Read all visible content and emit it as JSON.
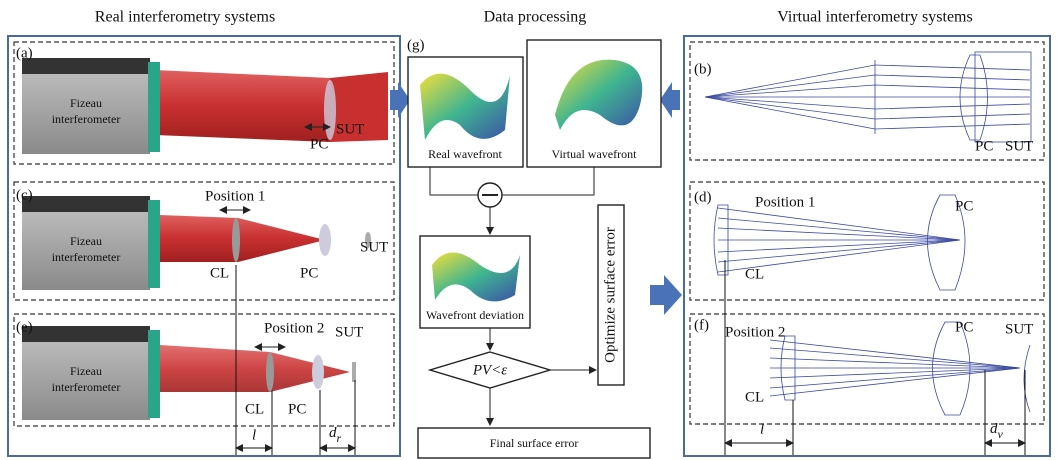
{
  "headers": {
    "real": "Real interferometry systems",
    "processing": "Data processing",
    "virtual": "Virtual interferometry systems"
  },
  "panels": {
    "a": {
      "label": "(a)",
      "device": [
        "Fizeau",
        "interferometer"
      ],
      "pc": "PC",
      "sut": "SUT"
    },
    "c": {
      "label": "(c)",
      "device": [
        "Fizeau",
        "interferometer"
      ],
      "position": "Position 1",
      "cl": "CL",
      "pc": "PC",
      "sut": "SUT"
    },
    "e": {
      "label": "(e)",
      "device": [
        "Fizeau",
        "interferometer"
      ],
      "position": "Position 2",
      "cl": "CL",
      "pc": "PC",
      "sut": "SUT",
      "l": "l",
      "d": {
        "symbol": "d",
        "subscript": "r"
      }
    },
    "b": {
      "label": "(b)",
      "pc": "PC",
      "sut": "SUT"
    },
    "d": {
      "label": "(d)",
      "position": "Position 1",
      "cl": "CL",
      "pc": "PC"
    },
    "f": {
      "label": "(f)",
      "position": "Position 2",
      "cl": "CL",
      "pc": "PC",
      "sut": "SUT",
      "l": "l",
      "d": {
        "symbol": "d",
        "subscript": "v"
      }
    },
    "g": {
      "label": "(g)",
      "real": "Real wavefront",
      "virtual": "Virtual wavefront",
      "deviation": "Wavefront deviation",
      "condition": "PV<ε",
      "optimize": "Optimize surface error",
      "final": "Final surface error"
    }
  }
}
